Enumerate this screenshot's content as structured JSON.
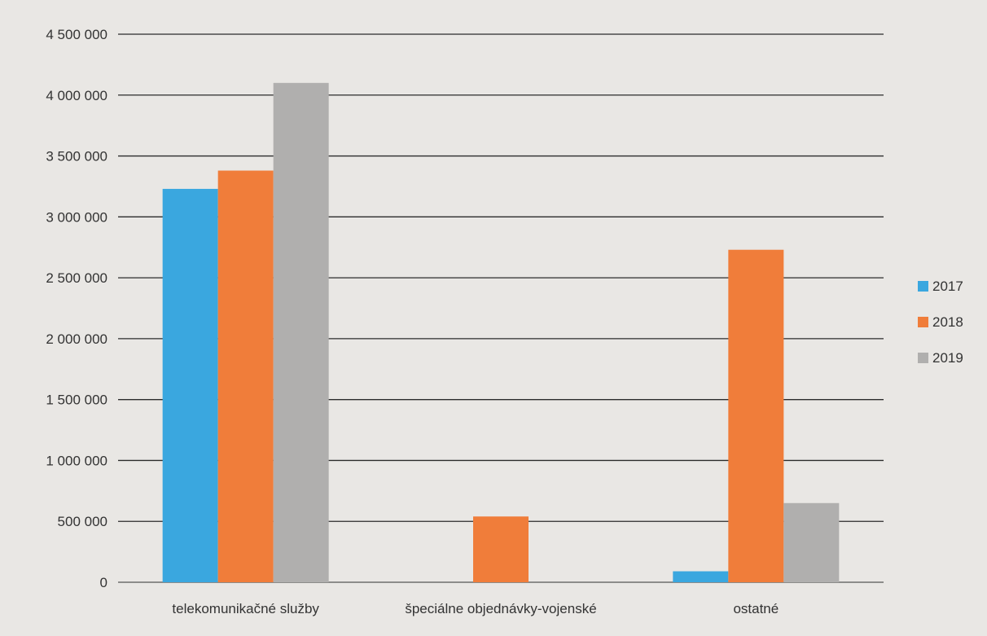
{
  "chart_data": {
    "type": "bar",
    "categories": [
      "telekomunikačné služby",
      "špeciálne objednávky-vojenské",
      "ostatné"
    ],
    "series": [
      {
        "name": "2017",
        "values": [
          3230000,
          0,
          90000
        ]
      },
      {
        "name": "2018",
        "values": [
          3380000,
          540000,
          2730000
        ]
      },
      {
        "name": "2019",
        "values": [
          4100000,
          0,
          650000
        ]
      }
    ],
    "ylim": [
      0,
      4500000
    ],
    "yticks": [
      "0",
      "500 000",
      "1 000 000",
      "1 500 000",
      "2 000 000",
      "2 500 000",
      "3 000 000",
      "3 500 000",
      "4 000 000",
      "4 500 000"
    ],
    "grid": true,
    "legend_position": "right",
    "colors": [
      "#3aa7df",
      "#f07d3a",
      "#b0afae"
    ]
  }
}
